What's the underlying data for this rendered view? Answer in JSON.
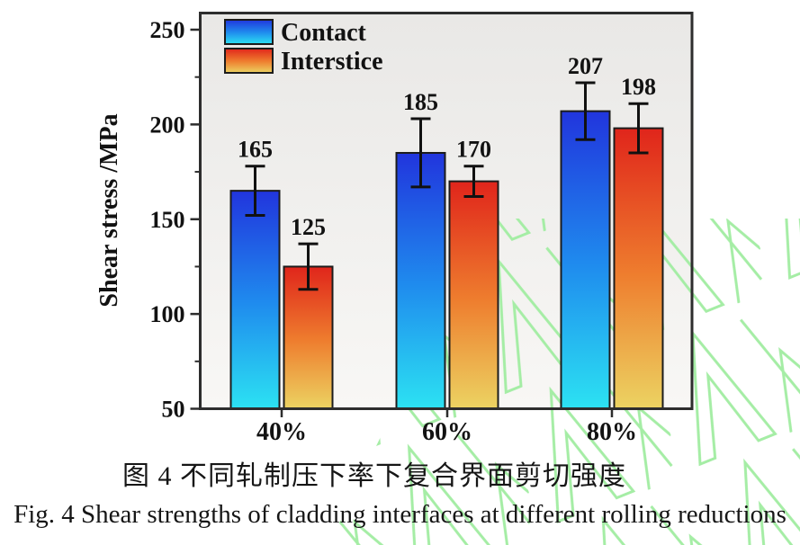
{
  "figure": {
    "caption_zh": "图 4  不同轧制压下率下复合界面剪切强度",
    "caption_en": "Fig. 4 Shear strengths of cladding interfaces at different rolling reductions"
  },
  "chart_data": {
    "type": "bar",
    "title": "",
    "xlabel": "",
    "ylabel": "Shear stress /MPa",
    "categories": [
      "40%",
      "60%",
      "80%"
    ],
    "series": [
      {
        "name": "Contact",
        "values": [
          165,
          185,
          207
        ],
        "errors": [
          13,
          18,
          15
        ],
        "gradient_top": "#2135dd",
        "gradient_mid": "#1f8cee",
        "gradient_bottom": "#2ce2f2"
      },
      {
        "name": "Interstice",
        "values": [
          125,
          170,
          198
        ],
        "errors": [
          12,
          8,
          13
        ],
        "gradient_top": "#e0251b",
        "gradient_mid": "#ee7d2e",
        "gradient_bottom": "#ecd362"
      }
    ],
    "ylim": [
      50,
      259
    ],
    "yticks": [
      50,
      100,
      150,
      200,
      250
    ],
    "minor_ytick_step": 25,
    "bar_value_labels": true,
    "legend_position": "top-left",
    "grid": false
  },
  "style": {
    "plot_bg_top": "#e9e8e6",
    "plot_bg_bottom": "#f8f7f5",
    "frame_color": "#2d2d2d",
    "bar_border_color": "#1c1c1c",
    "text_color": "#121212",
    "errorbar_color": "#111111",
    "watermark_color": "#a5eda5"
  }
}
